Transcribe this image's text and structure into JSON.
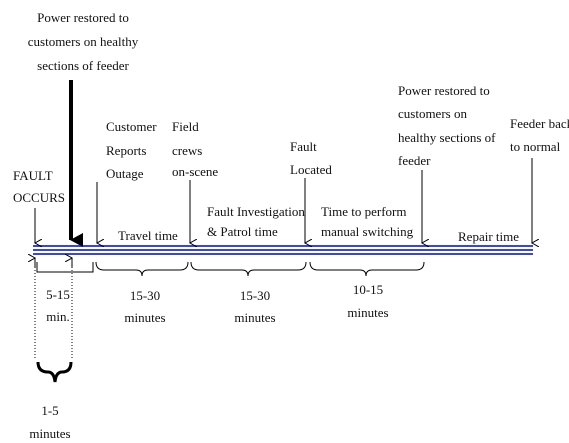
{
  "events": [
    {
      "lines": [
        "Power restored to",
        "customers on healthy",
        "sections of feeder"
      ]
    },
    {
      "lines": [
        "FAULT",
        "OCCURS"
      ]
    },
    {
      "lines": [
        "Customer",
        "Reports",
        "Outage"
      ]
    },
    {
      "lines": [
        "Field",
        "crews",
        "on-scene"
      ]
    },
    {
      "lines": [
        "Fault",
        "Located"
      ]
    },
    {
      "lines": [
        "Power restored to",
        "customers on",
        "healthy sections of",
        "feeder"
      ]
    },
    {
      "lines": [
        "Feeder back",
        "to normal"
      ]
    }
  ],
  "phases": [
    {
      "lines": [
        "Travel time"
      ]
    },
    {
      "lines": [
        "Fault Investigation",
        "& Patrol time"
      ]
    },
    {
      "lines": [
        "Time to perform",
        "manual switching"
      ]
    },
    {
      "lines": [
        "Repair time"
      ]
    }
  ],
  "durations": [
    {
      "lines": [
        "5-15",
        "min."
      ]
    },
    {
      "lines": [
        "15-30",
        "minutes"
      ]
    },
    {
      "lines": [
        "15-30",
        "minutes"
      ]
    },
    {
      "lines": [
        "10-15",
        "minutes"
      ]
    },
    {
      "lines": [
        "1-5",
        "minutes"
      ]
    }
  ]
}
